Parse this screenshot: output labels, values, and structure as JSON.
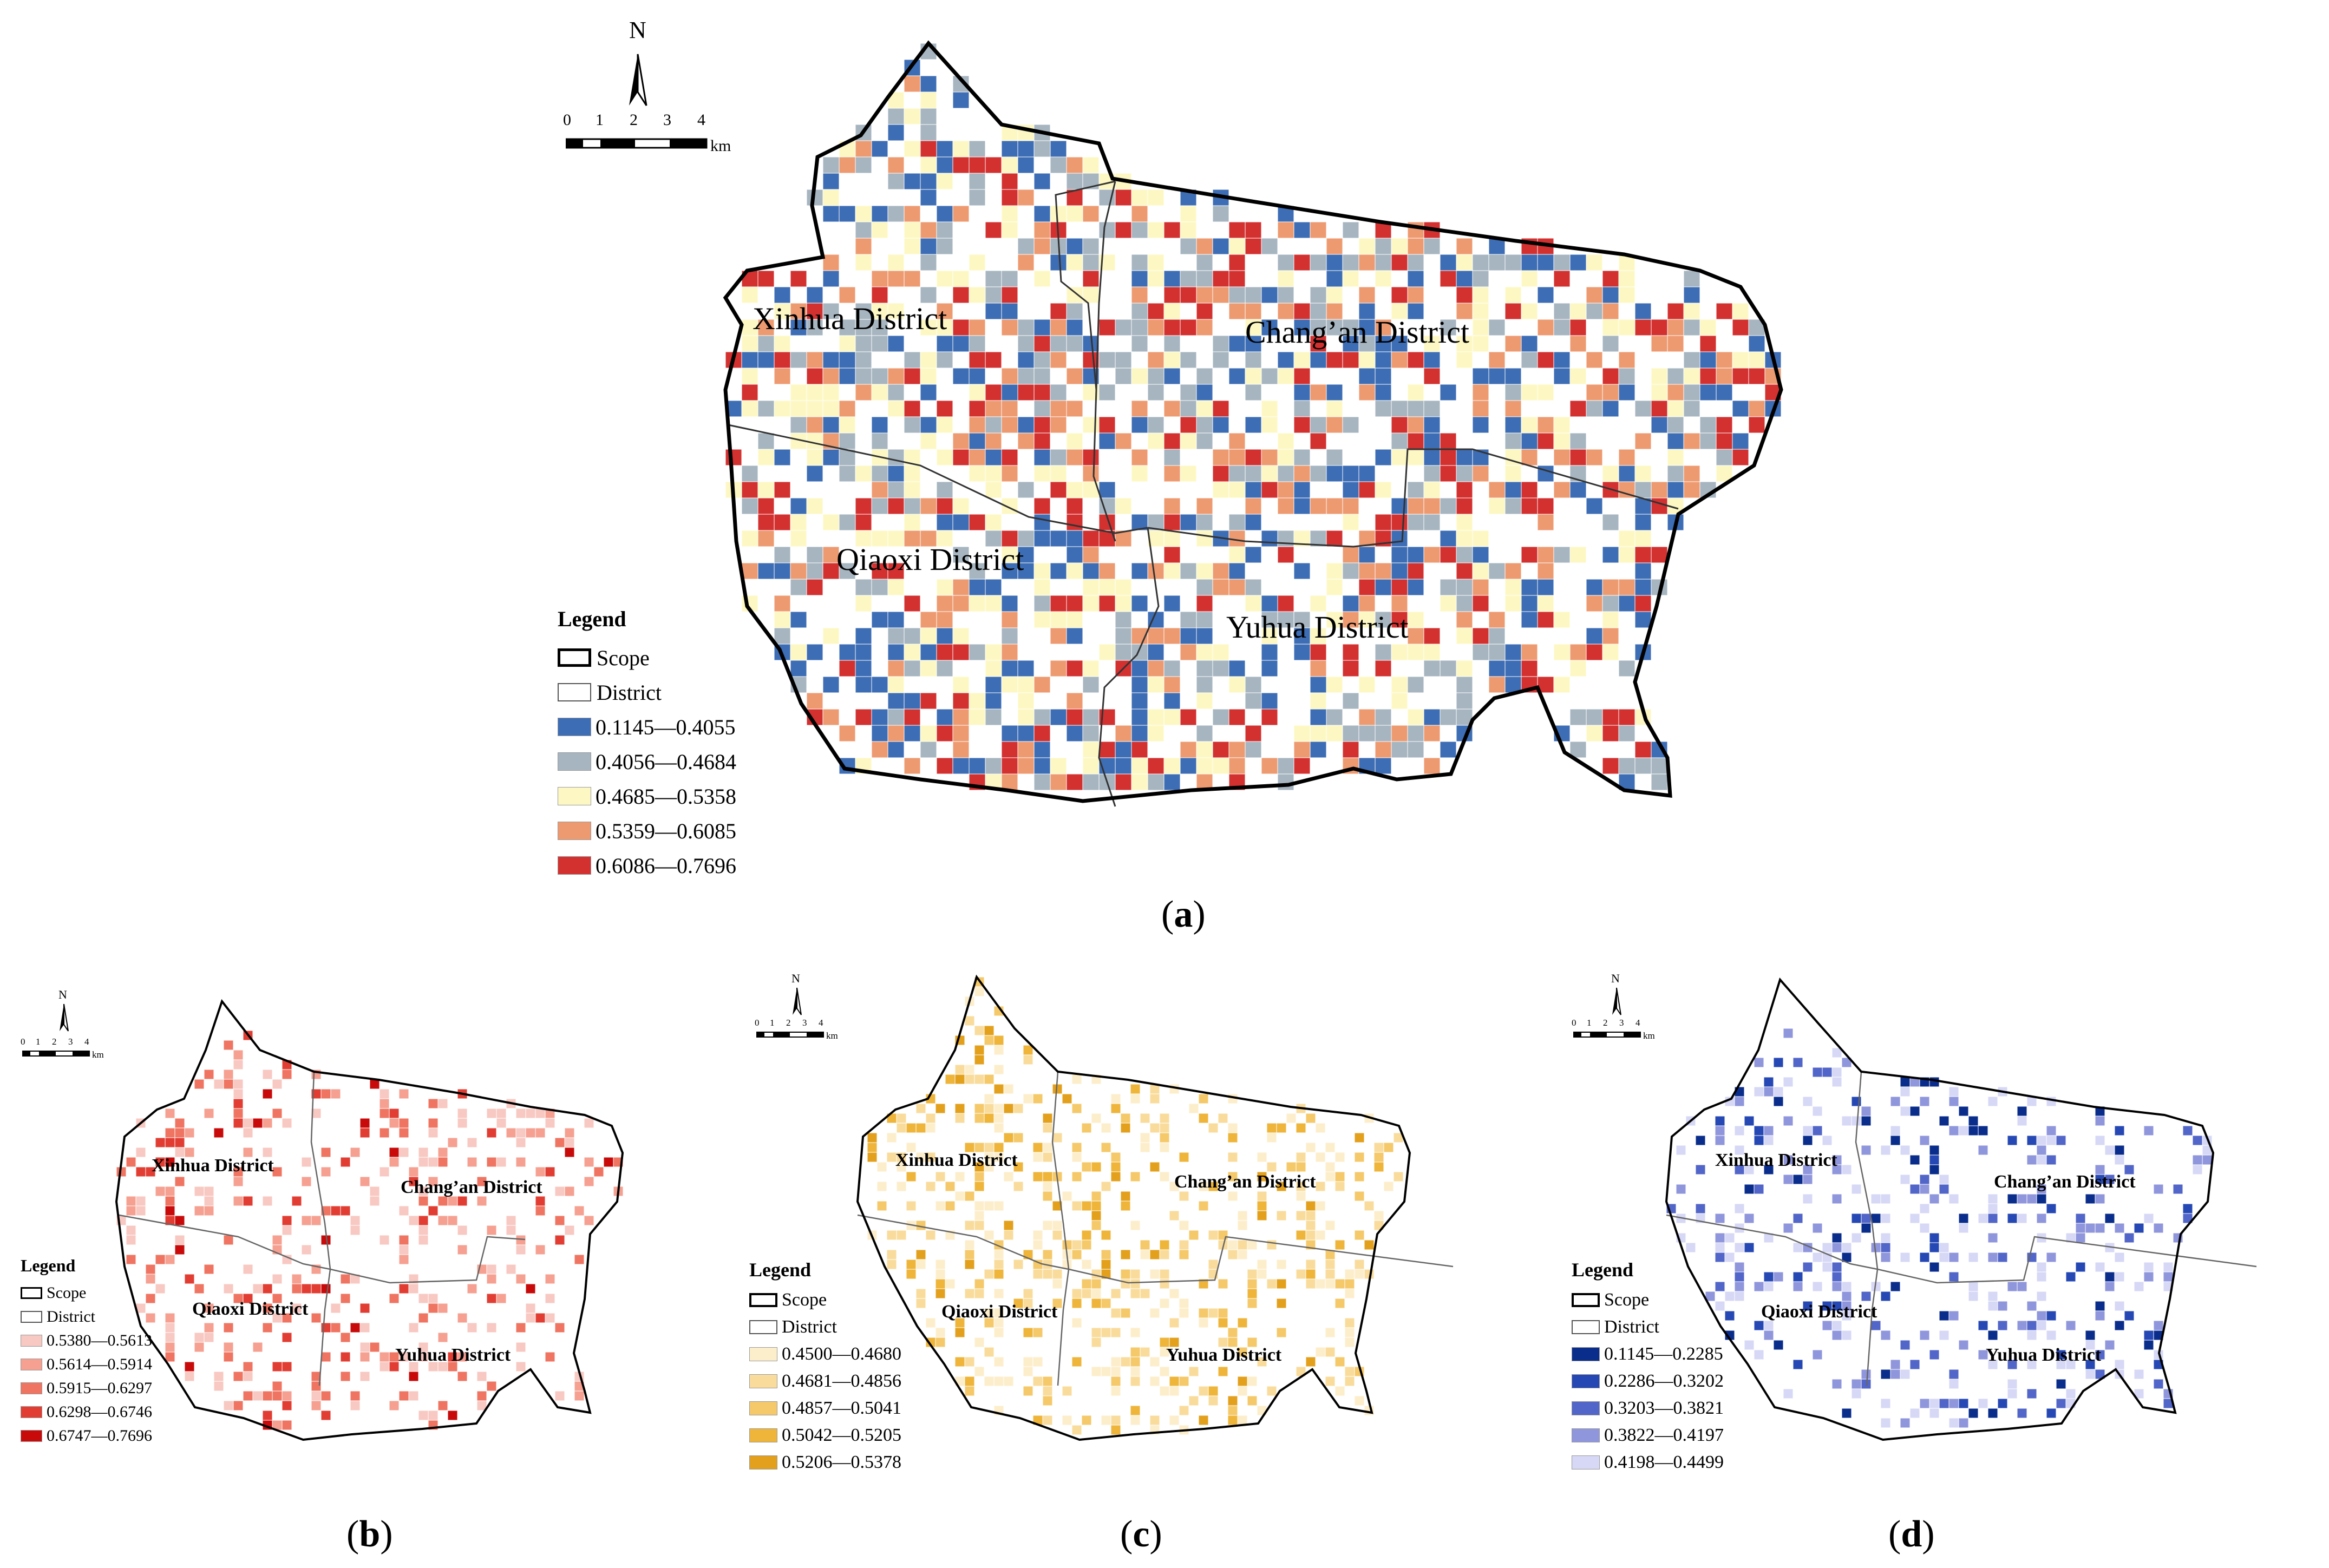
{
  "panels": [
    {
      "id": "a",
      "caption": "a",
      "legend": {
        "title": "Legend",
        "scope_label": "Scope",
        "district_label": "District",
        "classes": [
          {
            "label": "0.1145—0.4055",
            "color": "#3d6db5"
          },
          {
            "label": "0.4056—0.4684",
            "color": "#a6b5c0"
          },
          {
            "label": "0.4685—0.5358",
            "color": "#fdf8c3"
          },
          {
            "label": "0.5359—0.6085",
            "color": "#ee9a70"
          },
          {
            "label": "0.6086—0.7696",
            "color": "#d33030"
          }
        ]
      },
      "districts": [
        "Xinhua District",
        "Chang’an District",
        "Qiaoxi District",
        "Yuhua District"
      ],
      "north": "N",
      "scale_ticks": [
        "0",
        "1",
        "2",
        "3",
        "4"
      ],
      "scale_unit": "km"
    },
    {
      "id": "b",
      "caption": "b",
      "legend": {
        "title": "Legend",
        "scope_label": "Scope",
        "district_label": "District",
        "classes": [
          {
            "label": "0.5380—0.5613",
            "color": "#f8c8c2"
          },
          {
            "label": "0.5614—0.5914",
            "color": "#f5a091"
          },
          {
            "label": "0.5915—0.6297",
            "color": "#ef7462"
          },
          {
            "label": "0.6298—0.6746",
            "color": "#e23d33"
          },
          {
            "label": "0.6747—0.7696",
            "color": "#c80a0a"
          }
        ]
      },
      "districts": [
        "Xinhua District",
        "Chang’an District",
        "Qiaoxi District",
        "Yuhua District"
      ],
      "north": "N",
      "scale_ticks": [
        "0",
        "1",
        "2",
        "3",
        "4"
      ],
      "scale_unit": "km"
    },
    {
      "id": "c",
      "caption": "c",
      "legend": {
        "title": "Legend",
        "scope_label": "Scope",
        "district_label": "District",
        "classes": [
          {
            "label": "0.4500—0.4680",
            "color": "#fdeecb"
          },
          {
            "label": "0.4681—0.4856",
            "color": "#f9dc9c"
          },
          {
            "label": "0.4857—0.5041",
            "color": "#f5c96a"
          },
          {
            "label": "0.5042—0.5205",
            "color": "#eeb53a"
          },
          {
            "label": "0.5206—0.5378",
            "color": "#e3a01c"
          }
        ]
      },
      "districts": [
        "Xinhua District",
        "Chang’an District",
        "Qiaoxi District",
        "Yuhua District"
      ],
      "north": "N",
      "scale_ticks": [
        "0",
        "1",
        "2",
        "3",
        "4"
      ],
      "scale_unit": "km"
    },
    {
      "id": "d",
      "caption": "d",
      "legend": {
        "title": "Legend",
        "scope_label": "Scope",
        "district_label": "District",
        "classes": [
          {
            "label": "0.1145—0.2285",
            "color": "#0a2d8c"
          },
          {
            "label": "0.2286—0.3202",
            "color": "#2648b4"
          },
          {
            "label": "0.3203—0.3821",
            "color": "#5265c8"
          },
          {
            "label": "0.3822—0.4197",
            "color": "#8f96dc"
          },
          {
            "label": "0.4198—0.4499",
            "color": "#d6d8f6"
          }
        ]
      },
      "districts": [
        "Xinhua District",
        "Chang’an District",
        "Qiaoxi District",
        "Yuhua District"
      ],
      "north": "N",
      "scale_ticks": [
        "0",
        "1",
        "2",
        "3",
        "4"
      ],
      "scale_unit": "km"
    }
  ]
}
